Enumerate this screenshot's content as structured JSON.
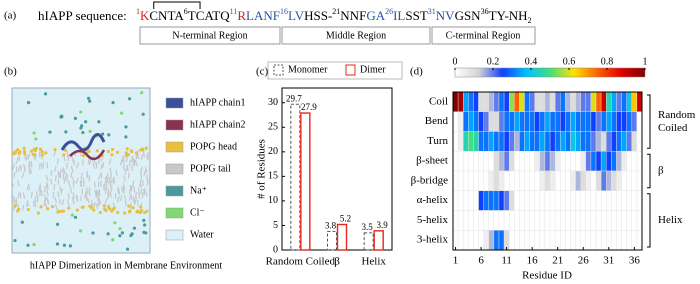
{
  "panel_a": {
    "label": "(a)",
    "title": "hIAPP sequence:",
    "sequence": [
      {
        "sup": "1",
        "text": "K",
        "color": "#d62020"
      },
      {
        "text": "CNTA",
        "color": "#000000"
      },
      {
        "sup": "6",
        "text": "TCATQ",
        "color": "#000000"
      },
      {
        "sup": "11",
        "text": "R",
        "color": "#d62020"
      },
      {
        "text": "LANF",
        "color": "#2a55a0"
      },
      {
        "sup": "16",
        "text": "LV",
        "color": "#2a55a0"
      },
      {
        "text": "HSS-",
        "color": "#000000"
      },
      {
        "sup": "21",
        "text": "NNF",
        "color": "#000000"
      },
      {
        "text": "GA",
        "color": "#2a55a0"
      },
      {
        "sup": "26",
        "text": "IL",
        "color": "#2a55a0"
      },
      {
        "text": "SST",
        "color": "#000000"
      },
      {
        "sup": "31",
        "text": "NV",
        "color": "#2a55a0"
      },
      {
        "text": "GSN",
        "color": "#000000"
      },
      {
        "sup": "36",
        "text": "TY-NH",
        "sub": "2",
        "color": "#000000"
      }
    ],
    "regions": [
      "N-terminal Region",
      "Middle Region",
      "C-terminal Region"
    ]
  },
  "panel_b": {
    "label": "(b)",
    "legend": [
      {
        "name": "hIAPP chain1",
        "color": "#3b4f9c"
      },
      {
        "name": "hIAPP chain2",
        "color": "#8a3050"
      },
      {
        "name": "POPG head",
        "color": "#e8c040"
      },
      {
        "name": "POPG tail",
        "color": "#c8c8c8"
      },
      {
        "name": "Na⁺",
        "color": "#4a9a9c"
      },
      {
        "name": "Cl⁻",
        "color": "#80d870"
      },
      {
        "name": "Water",
        "color": "#dcf0f8"
      }
    ],
    "caption": "hIAPP Dimerization in Membrane Environment"
  },
  "chart_data": [
    {
      "type": "bar",
      "label": "(c)",
      "y_label": "# of Residues",
      "categories": [
        "Random Coiled",
        "β",
        "Helix"
      ],
      "series": [
        {
          "name": "Monomer",
          "color": "#555555",
          "style": "dashed",
          "values": [
            29.7,
            3.8,
            3.5
          ]
        },
        {
          "name": "Dimer",
          "color": "#e8251c",
          "style": "solid",
          "values": [
            27.9,
            5.2,
            3.9
          ]
        }
      ],
      "ylim": [
        0,
        33
      ],
      "yticks": [
        0,
        5,
        10,
        15,
        20,
        25,
        30
      ],
      "legend": "top"
    },
    {
      "type": "heatmap",
      "label": "(d)",
      "x_label": "Residue ID",
      "x": [
        1,
        2,
        3,
        4,
        5,
        6,
        7,
        8,
        9,
        10,
        11,
        12,
        13,
        14,
        15,
        16,
        17,
        18,
        19,
        20,
        21,
        22,
        23,
        24,
        25,
        26,
        27,
        28,
        29,
        30,
        31,
        32,
        33,
        34,
        35,
        36,
        37
      ],
      "xlim": [
        0.5,
        37.5
      ],
      "xticks": [
        1,
        6,
        11,
        16,
        21,
        26,
        31,
        36
      ],
      "clim": [
        0,
        1
      ],
      "cticks": [
        0,
        0.2,
        0.4,
        0.6,
        0.8,
        1
      ],
      "colormap": [
        "#ffffff",
        "#d4d4d4",
        "#1040ff",
        "#00c0ff",
        "#40e080",
        "#ffe000",
        "#ff6000",
        "#e00000",
        "#800000"
      ],
      "groups": [
        {
          "name": "Random Coiled",
          "rows": [
            {
              "name": "Coil",
              "values": [
                1.0,
                0.95,
                0.35,
                0.3,
                0.25,
                0.1,
                0.1,
                0.15,
                0.2,
                0.3,
                0.25,
                0.55,
                0.75,
                0.6,
                0.3,
                0.2,
                0.1,
                0.1,
                0.15,
                0.1,
                0.2,
                0.3,
                0.15,
                0.1,
                0.15,
                0.2,
                0.2,
                0.6,
                0.75,
                0.9,
                0.45,
                0.35,
                0.2,
                0.3,
                0.4,
                0.65,
                0.9
              ]
            },
            {
              "name": "Bend",
              "values": [
                0,
                0.05,
                0.3,
                0.35,
                0.3,
                0.25,
                0.2,
                0.1,
                0.1,
                0.2,
                0.3,
                0.3,
                0.35,
                0.3,
                0.3,
                0.3,
                0.25,
                0.3,
                0.35,
                0.3,
                0.3,
                0.25,
                0.3,
                0.35,
                0.3,
                0.3,
                0.3,
                0.25,
                0.2,
                0.3,
                0.35,
                0.3,
                0.25,
                0.25,
                0.3,
                0.2,
                0
              ]
            },
            {
              "name": "Turn",
              "values": [
                0,
                0.05,
                0.45,
                0.5,
                0.45,
                0.3,
                0.3,
                0.35,
                0.3,
                0.3,
                0.25,
                0.2,
                0.15,
                0.3,
                0.35,
                0.3,
                0.3,
                0.35,
                0.3,
                0.25,
                0.3,
                0.35,
                0.3,
                0.4,
                0.35,
                0.3,
                0.3,
                0.2,
                0.15,
                0.1,
                0.2,
                0.25,
                0.3,
                0.35,
                0.2,
                0.1,
                0
              ]
            }
          ]
        },
        {
          "name": "β",
          "rows": [
            {
              "name": "β-sheet",
              "values": [
                0,
                0,
                0,
                0,
                0,
                0,
                0,
                0,
                0.1,
                0.15,
                0.2,
                0.1,
                0,
                0,
                0,
                0,
                0.05,
                0.15,
                0.2,
                0.15,
                0.05,
                0,
                0,
                0,
                0,
                0.05,
                0.2,
                0.3,
                0.25,
                0.35,
                0.25,
                0.3,
                0.15,
                0.05,
                0,
                0,
                0
              ]
            },
            {
              "name": "β-bridge",
              "values": [
                0,
                0,
                0,
                0,
                0,
                0,
                0,
                0.05,
                0.1,
                0.05,
                0,
                0,
                0,
                0,
                0,
                0,
                0,
                0.05,
                0.1,
                0.05,
                0,
                0,
                0,
                0.05,
                0.15,
                0.1,
                0.05,
                0,
                0.1,
                0.2,
                0.15,
                0.1,
                0.05,
                0,
                0,
                0,
                0
              ]
            }
          ]
        },
        {
          "name": "Helix",
          "rows": [
            {
              "name": "α-helix",
              "values": [
                0,
                0,
                0,
                0,
                0,
                0.25,
                0.3,
                0.3,
                0.3,
                0.25,
                0.2,
                0.1,
                0,
                0,
                0,
                0,
                0,
                0,
                0,
                0,
                0,
                0,
                0,
                0,
                0,
                0,
                0,
                0,
                0,
                0,
                0,
                0,
                0,
                0,
                0,
                0,
                0
              ]
            },
            {
              "name": "5-helix",
              "values": [
                0,
                0,
                0,
                0,
                0,
                0,
                0,
                0,
                0,
                0,
                0,
                0,
                0,
                0,
                0,
                0,
                0,
                0,
                0,
                0,
                0,
                0,
                0,
                0,
                0,
                0,
                0,
                0,
                0,
                0,
                0,
                0,
                0,
                0,
                0,
                0,
                0
              ]
            },
            {
              "name": "3-helix",
              "values": [
                0,
                0,
                0,
                0,
                0,
                0,
                0.05,
                0.15,
                0.3,
                0.3,
                0.1,
                0,
                0,
                0,
                0,
                0,
                0,
                0,
                0,
                0,
                0,
                0,
                0,
                0,
                0,
                0,
                0,
                0,
                0,
                0,
                0,
                0,
                0,
                0,
                0,
                0,
                0
              ]
            }
          ]
        }
      ]
    }
  ]
}
